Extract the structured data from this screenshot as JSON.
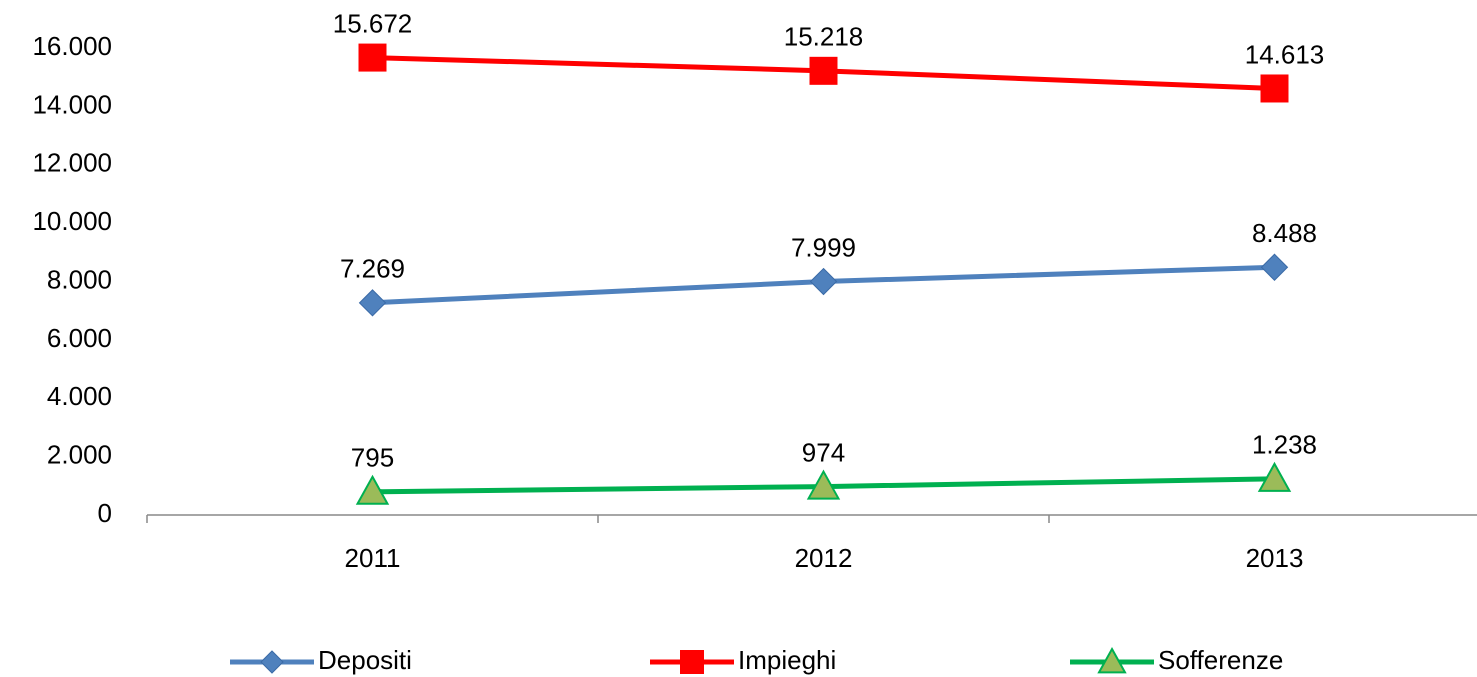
{
  "chart_data": {
    "type": "line",
    "categories": [
      "2011",
      "2012",
      "2013"
    ],
    "series": [
      {
        "name": "Depositi",
        "color": "#4f81bd",
        "marker": "diamond",
        "values": [
          7269,
          7999,
          8488
        ],
        "value_labels": [
          "7.269",
          "7.999",
          "8.488"
        ]
      },
      {
        "name": "Impieghi",
        "color": "#ff0000",
        "marker": "square",
        "values": [
          15672,
          15218,
          14613
        ],
        "value_labels": [
          "15.672",
          "15.218",
          "14.613"
        ]
      },
      {
        "name": "Sofferenze",
        "color": "#00b050",
        "marker": "triangle",
        "values": [
          795,
          974,
          1238
        ],
        "value_labels": [
          "795",
          "974",
          "1.238"
        ]
      }
    ],
    "ylim": [
      0,
      16000
    ],
    "yticks": [
      0,
      {
        "value": 2000,
        "label": "2.000"
      },
      {
        "value": 4000,
        "label": "4.000"
      },
      {
        "value": 6000,
        "label": "6.000"
      },
      {
        "value": 8000,
        "label": "8.000"
      },
      {
        "value": 10000,
        "label": "10.000"
      },
      {
        "value": 12000,
        "label": "12.000"
      },
      {
        "value": 14000,
        "label": "14.000"
      },
      {
        "value": 16000,
        "label": "16.000"
      }
    ],
    "grid": false,
    "legend": "bottom"
  }
}
